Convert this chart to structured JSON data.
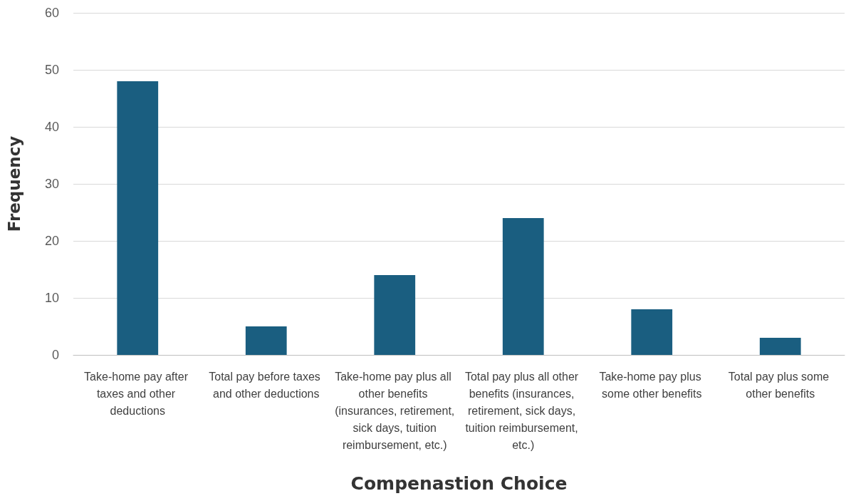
{
  "chart_data": {
    "type": "bar",
    "xlabel": "Compenastion Choice",
    "ylabel": "Frequency",
    "categories": [
      "Take-home pay after taxes and other deductions",
      "Total pay before taxes and other deductions",
      "Take-home pay plus all other benefits (insurances, retirement, sick days, tuition reimbursement, etc.)",
      "Total pay plus all other benefits (insurances, retirement, sick days, tuition reimbursement, etc.)",
      "Take-home pay plus some other benefits",
      "Total pay plus some other benefits"
    ],
    "values": [
      48,
      5,
      14,
      24,
      8,
      3
    ],
    "color": "#1a5e80",
    "ylim": [
      0,
      60
    ],
    "yticks": [
      0,
      10,
      20,
      30,
      40,
      50,
      60
    ],
    "grid": "y"
  }
}
